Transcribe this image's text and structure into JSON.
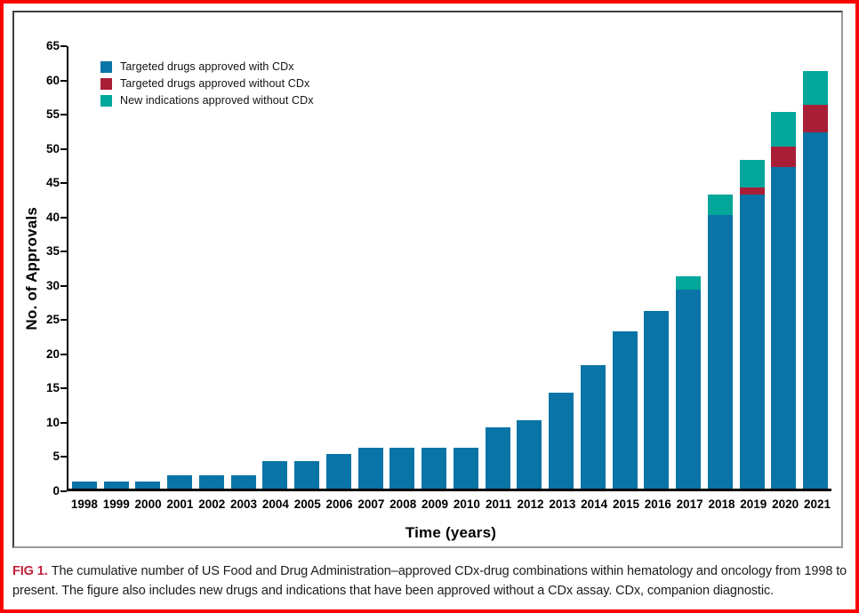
{
  "figure": {
    "caption_label": "FIG 1.",
    "caption_text": "The cumulative number of US Food and Drug Administration–approved CDx-drug combinations within hematology and oncology from 1998 to present. The figure also includes new drugs and indications that have been approved without a CDx assay. CDx, companion diagnostic."
  },
  "chart_data": {
    "type": "bar",
    "stacked": true,
    "title": "",
    "xlabel": "Time (years)",
    "ylabel": "No. of Approvals",
    "ylim": [
      0,
      65
    ],
    "ytick_step": 5,
    "grid": false,
    "legend_position": "top-left",
    "categories": [
      "1998",
      "1999",
      "2000",
      "2001",
      "2002",
      "2003",
      "2004",
      "2005",
      "2006",
      "2007",
      "2008",
      "2009",
      "2010",
      "2011",
      "2012",
      "2013",
      "2014",
      "2015",
      "2016",
      "2017",
      "2018",
      "2019",
      "2020",
      "2021"
    ],
    "series": [
      {
        "name": "Targeted drugs approved with CDx",
        "color": "#0a74a6",
        "values": [
          1,
          1,
          1,
          2,
          2,
          2,
          4,
          4,
          5,
          6,
          6,
          6,
          6,
          9,
          10,
          14,
          18,
          23,
          26,
          29,
          40,
          43,
          47,
          52
        ]
      },
      {
        "name": "Targeted drugs approved without CDx",
        "color": "#a81e36",
        "values": [
          0,
          0,
          0,
          0,
          0,
          0,
          0,
          0,
          0,
          0,
          0,
          0,
          0,
          0,
          0,
          0,
          0,
          0,
          0,
          0,
          0,
          1,
          3,
          4
        ]
      },
      {
        "name": "New indications approved without CDx",
        "color": "#00a79a",
        "values": [
          0,
          0,
          0,
          0,
          0,
          0,
          0,
          0,
          0,
          0,
          0,
          0,
          0,
          0,
          0,
          0,
          0,
          0,
          0,
          2,
          3,
          4,
          5,
          5
        ]
      }
    ],
    "totals": [
      1,
      1,
      1,
      2,
      2,
      2,
      4,
      4,
      5,
      6,
      6,
      6,
      6,
      9,
      10,
      14,
      18,
      23,
      26,
      31,
      43,
      48,
      55,
      61
    ]
  },
  "colors": {
    "page_border": "#ff0000",
    "panel_border": "#8c8c8c",
    "axis": "#000000",
    "caption_label": "#c2203a",
    "series_blue": "#0a74a6",
    "series_red": "#a81e36",
    "series_teal": "#00a79a"
  }
}
